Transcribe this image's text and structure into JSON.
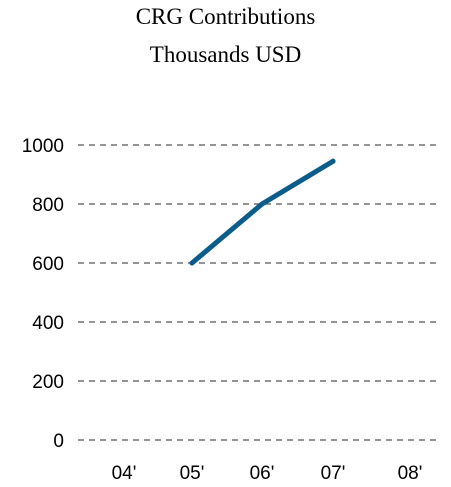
{
  "chart_data": {
    "type": "line",
    "title": "CRG Contributions",
    "subtitle": "Thousands USD",
    "xlabel": "",
    "ylabel": "",
    "categories": [
      "04'",
      "05'",
      "06'",
      "07'",
      "08'"
    ],
    "series": [
      {
        "values": [
          null,
          600,
          800,
          945,
          null
        ]
      }
    ],
    "ylim": [
      0,
      1000
    ],
    "yticks": [
      0,
      200,
      400,
      600,
      800,
      1000
    ],
    "grid": "horizontal dashed",
    "legend": "none",
    "line_color": "#0a5c8a",
    "grid_color": "#555555"
  }
}
